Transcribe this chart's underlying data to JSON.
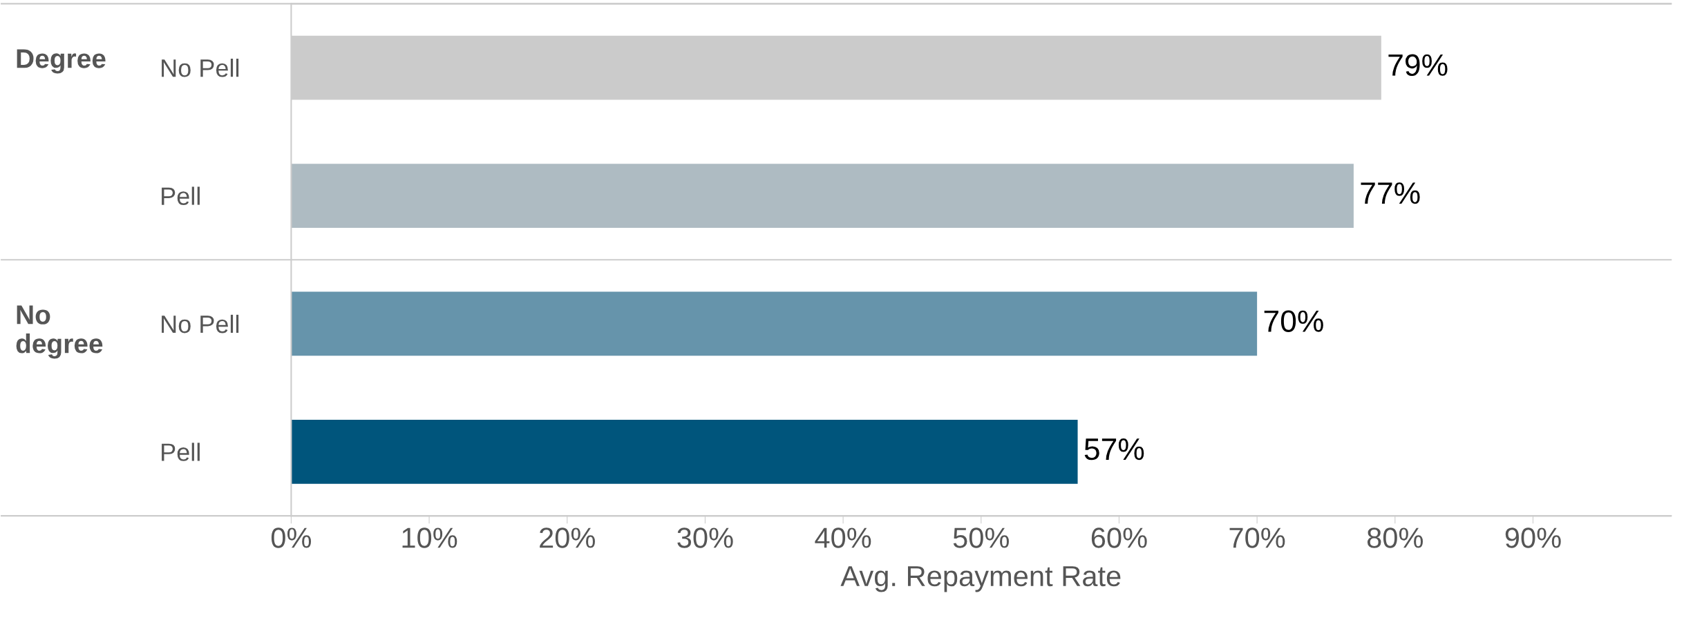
{
  "chart_data": {
    "type": "bar",
    "orientation": "horizontal",
    "xlabel": "Avg. Repayment Rate",
    "categories": [
      "No Pell",
      "Pell",
      "No Pell",
      "Pell"
    ],
    "values": [
      79,
      77,
      70,
      57
    ],
    "colors": [
      "#cbcbcb",
      "#aebbc2",
      "#6694ab",
      "#00557c"
    ],
    "value_labels": [
      "79%",
      "77%",
      "70%",
      "57%"
    ],
    "annotations": [
      "Degree",
      "No degree"
    ],
    "xlim": [
      0,
      100
    ],
    "xticks": [
      {
        "value": 0,
        "label": "0%"
      },
      {
        "value": 10,
        "label": "10%"
      },
      {
        "value": 20,
        "label": "20%"
      },
      {
        "value": 30,
        "label": "30%"
      },
      {
        "value": 40,
        "label": "40%"
      },
      {
        "value": 50,
        "label": "50%"
      },
      {
        "value": 60,
        "label": "60%"
      },
      {
        "value": 70,
        "label": "70%"
      },
      {
        "value": 80,
        "label": "80%"
      },
      {
        "value": 90,
        "label": "90%"
      }
    ],
    "grid": false
  }
}
